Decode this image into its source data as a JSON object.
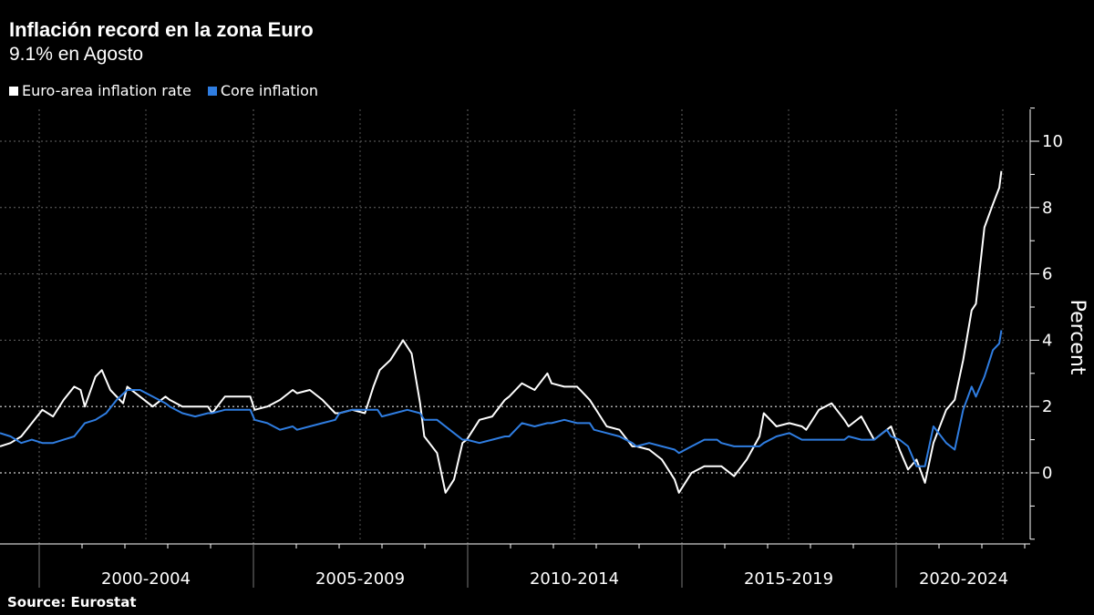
{
  "title": "Inflación record en la zona Euro",
  "subtitle": "9.1% en Agosto",
  "source": "Source:  Eurostat",
  "chart_data": {
    "type": "line",
    "ylabel": "Percent",
    "ylim": [
      -2,
      11
    ],
    "yticks": [
      0,
      2,
      4,
      6,
      8,
      10
    ],
    "xlim": [
      1999.0,
      2023.0
    ],
    "x_groups": [
      "2000-2004",
      "2005-2009",
      "2010-2014",
      "2015-2019",
      "2020-2024"
    ],
    "grid": true,
    "legend_position": "top-left",
    "series": [
      {
        "name": "Euro-area inflation rate",
        "color": "#ffffff",
        "points": [
          [
            1999.0,
            0.8
          ],
          [
            1999.25,
            0.9
          ],
          [
            1999.5,
            1.1
          ],
          [
            1999.75,
            1.5
          ],
          [
            2000.0,
            1.9
          ],
          [
            2000.25,
            1.7
          ],
          [
            2000.5,
            2.2
          ],
          [
            2000.75,
            2.6
          ],
          [
            2000.9,
            2.5
          ],
          [
            2001.0,
            2.0
          ],
          [
            2001.25,
            2.9
          ],
          [
            2001.4,
            3.1
          ],
          [
            2001.6,
            2.5
          ],
          [
            2001.9,
            2.1
          ],
          [
            2002.0,
            2.6
          ],
          [
            2002.3,
            2.3
          ],
          [
            2002.6,
            2.0
          ],
          [
            2002.9,
            2.3
          ],
          [
            2003.0,
            2.2
          ],
          [
            2003.3,
            2.0
          ],
          [
            2003.6,
            2.0
          ],
          [
            2003.9,
            2.0
          ],
          [
            2004.0,
            1.8
          ],
          [
            2004.3,
            2.3
          ],
          [
            2004.6,
            2.3
          ],
          [
            2004.9,
            2.3
          ],
          [
            2005.0,
            1.9
          ],
          [
            2005.3,
            2.0
          ],
          [
            2005.6,
            2.2
          ],
          [
            2005.9,
            2.5
          ],
          [
            2006.0,
            2.4
          ],
          [
            2006.3,
            2.5
          ],
          [
            2006.6,
            2.2
          ],
          [
            2006.9,
            1.8
          ],
          [
            2007.0,
            1.8
          ],
          [
            2007.3,
            1.9
          ],
          [
            2007.6,
            1.8
          ],
          [
            2007.8,
            2.6
          ],
          [
            2007.95,
            3.1
          ],
          [
            2008.2,
            3.4
          ],
          [
            2008.5,
            4.0
          ],
          [
            2008.7,
            3.6
          ],
          [
            2008.9,
            2.1
          ],
          [
            2009.0,
            1.1
          ],
          [
            2009.3,
            0.6
          ],
          [
            2009.5,
            -0.6
          ],
          [
            2009.7,
            -0.2
          ],
          [
            2009.9,
            0.9
          ],
          [
            2010.0,
            1.0
          ],
          [
            2010.3,
            1.6
          ],
          [
            2010.6,
            1.7
          ],
          [
            2010.9,
            2.2
          ],
          [
            2011.0,
            2.3
          ],
          [
            2011.3,
            2.7
          ],
          [
            2011.6,
            2.5
          ],
          [
            2011.9,
            3.0
          ],
          [
            2012.0,
            2.7
          ],
          [
            2012.3,
            2.6
          ],
          [
            2012.6,
            2.6
          ],
          [
            2012.9,
            2.2
          ],
          [
            2013.0,
            2.0
          ],
          [
            2013.3,
            1.4
          ],
          [
            2013.6,
            1.3
          ],
          [
            2013.9,
            0.8
          ],
          [
            2014.0,
            0.8
          ],
          [
            2014.3,
            0.7
          ],
          [
            2014.6,
            0.4
          ],
          [
            2014.9,
            -0.2
          ],
          [
            2015.0,
            -0.6
          ],
          [
            2015.3,
            0.0
          ],
          [
            2015.6,
            0.2
          ],
          [
            2015.9,
            0.2
          ],
          [
            2016.0,
            0.2
          ],
          [
            2016.3,
            -0.1
          ],
          [
            2016.6,
            0.4
          ],
          [
            2016.9,
            1.1
          ],
          [
            2017.0,
            1.8
          ],
          [
            2017.3,
            1.4
          ],
          [
            2017.6,
            1.5
          ],
          [
            2017.9,
            1.4
          ],
          [
            2018.0,
            1.3
          ],
          [
            2018.3,
            1.9
          ],
          [
            2018.6,
            2.1
          ],
          [
            2018.9,
            1.6
          ],
          [
            2019.0,
            1.4
          ],
          [
            2019.3,
            1.7
          ],
          [
            2019.6,
            1.0
          ],
          [
            2019.9,
            1.3
          ],
          [
            2020.0,
            1.4
          ],
          [
            2020.2,
            0.7
          ],
          [
            2020.4,
            0.1
          ],
          [
            2020.6,
            0.4
          ],
          [
            2020.8,
            -0.3
          ],
          [
            2021.0,
            0.9
          ],
          [
            2021.3,
            1.9
          ],
          [
            2021.5,
            2.2
          ],
          [
            2021.7,
            3.4
          ],
          [
            2021.9,
            4.9
          ],
          [
            2022.0,
            5.1
          ],
          [
            2022.2,
            7.4
          ],
          [
            2022.4,
            8.1
          ],
          [
            2022.55,
            8.6
          ],
          [
            2022.6,
            9.1
          ]
        ]
      },
      {
        "name": "Core inflation",
        "color": "#2f7de1",
        "points": [
          [
            1999.0,
            1.2
          ],
          [
            1999.25,
            1.1
          ],
          [
            1999.5,
            0.9
          ],
          [
            1999.75,
            1.0
          ],
          [
            2000.0,
            0.9
          ],
          [
            2000.25,
            0.9
          ],
          [
            2000.5,
            1.0
          ],
          [
            2000.75,
            1.1
          ],
          [
            2001.0,
            1.5
          ],
          [
            2001.25,
            1.6
          ],
          [
            2001.5,
            1.8
          ],
          [
            2001.75,
            2.2
          ],
          [
            2002.0,
            2.5
          ],
          [
            2002.3,
            2.5
          ],
          [
            2002.6,
            2.3
          ],
          [
            2002.9,
            2.1
          ],
          [
            2003.0,
            2.0
          ],
          [
            2003.3,
            1.8
          ],
          [
            2003.6,
            1.7
          ],
          [
            2003.9,
            1.8
          ],
          [
            2004.0,
            1.8
          ],
          [
            2004.3,
            1.9
          ],
          [
            2004.6,
            1.9
          ],
          [
            2004.9,
            1.9
          ],
          [
            2005.0,
            1.6
          ],
          [
            2005.3,
            1.5
          ],
          [
            2005.6,
            1.3
          ],
          [
            2005.9,
            1.4
          ],
          [
            2006.0,
            1.3
          ],
          [
            2006.3,
            1.4
          ],
          [
            2006.6,
            1.5
          ],
          [
            2006.9,
            1.6
          ],
          [
            2007.0,
            1.8
          ],
          [
            2007.3,
            1.9
          ],
          [
            2007.6,
            1.9
          ],
          [
            2007.9,
            1.9
          ],
          [
            2008.0,
            1.7
          ],
          [
            2008.3,
            1.8
          ],
          [
            2008.6,
            1.9
          ],
          [
            2008.9,
            1.8
          ],
          [
            2009.0,
            1.6
          ],
          [
            2009.3,
            1.6
          ],
          [
            2009.6,
            1.3
          ],
          [
            2009.9,
            1.0
          ],
          [
            2010.0,
            1.0
          ],
          [
            2010.3,
            0.9
          ],
          [
            2010.6,
            1.0
          ],
          [
            2010.9,
            1.1
          ],
          [
            2011.0,
            1.1
          ],
          [
            2011.3,
            1.5
          ],
          [
            2011.6,
            1.4
          ],
          [
            2011.9,
            1.5
          ],
          [
            2012.0,
            1.5
          ],
          [
            2012.3,
            1.6
          ],
          [
            2012.6,
            1.5
          ],
          [
            2012.9,
            1.5
          ],
          [
            2013.0,
            1.3
          ],
          [
            2013.3,
            1.2
          ],
          [
            2013.6,
            1.1
          ],
          [
            2013.9,
            0.9
          ],
          [
            2014.0,
            0.8
          ],
          [
            2014.3,
            0.9
          ],
          [
            2014.6,
            0.8
          ],
          [
            2014.9,
            0.7
          ],
          [
            2015.0,
            0.6
          ],
          [
            2015.3,
            0.8
          ],
          [
            2015.6,
            1.0
          ],
          [
            2015.9,
            1.0
          ],
          [
            2016.0,
            0.9
          ],
          [
            2016.3,
            0.8
          ],
          [
            2016.6,
            0.8
          ],
          [
            2016.9,
            0.8
          ],
          [
            2017.0,
            0.9
          ],
          [
            2017.3,
            1.1
          ],
          [
            2017.6,
            1.2
          ],
          [
            2017.9,
            1.0
          ],
          [
            2018.0,
            1.0
          ],
          [
            2018.3,
            1.0
          ],
          [
            2018.6,
            1.0
          ],
          [
            2018.9,
            1.0
          ],
          [
            2019.0,
            1.1
          ],
          [
            2019.3,
            1.0
          ],
          [
            2019.6,
            1.0
          ],
          [
            2019.9,
            1.3
          ],
          [
            2020.0,
            1.1
          ],
          [
            2020.2,
            1.0
          ],
          [
            2020.4,
            0.8
          ],
          [
            2020.6,
            0.2
          ],
          [
            2020.8,
            0.2
          ],
          [
            2021.0,
            1.4
          ],
          [
            2021.3,
            0.9
          ],
          [
            2021.5,
            0.7
          ],
          [
            2021.7,
            1.9
          ],
          [
            2021.9,
            2.6
          ],
          [
            2022.0,
            2.3
          ],
          [
            2022.2,
            2.9
          ],
          [
            2022.4,
            3.7
          ],
          [
            2022.55,
            3.9
          ],
          [
            2022.6,
            4.3
          ]
        ]
      }
    ]
  }
}
